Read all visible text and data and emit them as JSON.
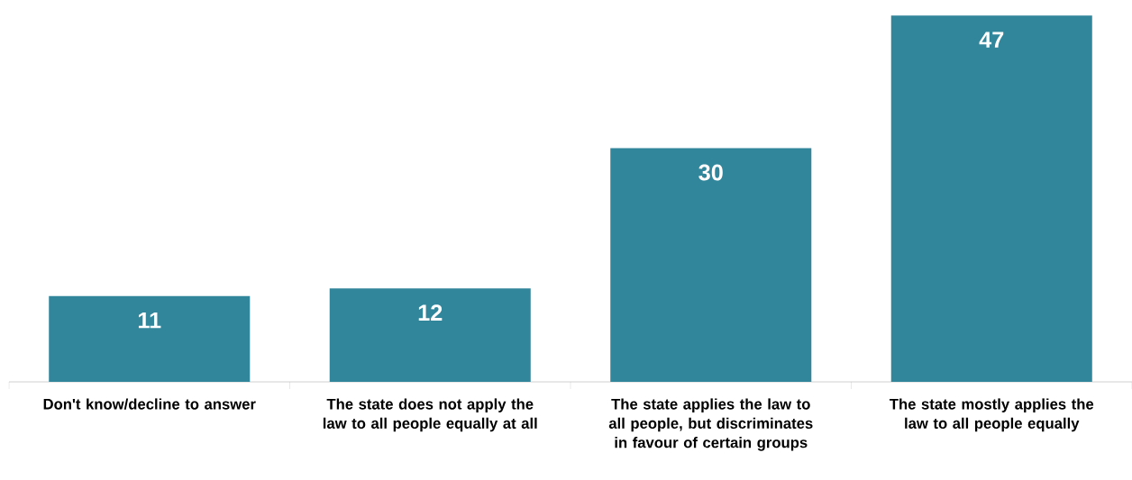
{
  "chart_data": {
    "type": "bar",
    "categories": [
      "Don't know/decline to answer",
      "The state does not apply the law to all people equally at all",
      "The state applies the law to all people, but discriminates in favour of certain groups",
      "The state mostly applies the law to all people equally"
    ],
    "values": [
      11,
      12,
      30,
      47
    ],
    "color": "#31869b",
    "data_labels": true
  }
}
